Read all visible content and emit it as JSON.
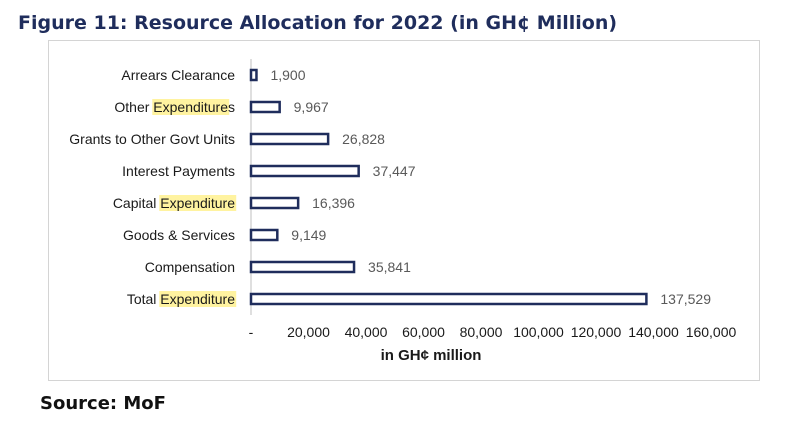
{
  "figure": {
    "title": "Figure 11: Resource Allocation for 2022 (in GH¢ Million)",
    "source": "Source: MoF"
  },
  "chart_data": {
    "type": "bar",
    "orientation": "horizontal",
    "categories": [
      "Arrears Clearance",
      "Other Expenditures",
      "Grants to Other Govt Units",
      "Interest Payments",
      "Capital Expenditure",
      "Goods & Services",
      "Compensation",
      "Total Expenditure"
    ],
    "values": [
      1900,
      9967,
      26828,
      37447,
      16396,
      9149,
      35841,
      137529
    ],
    "value_labels": [
      "1,900",
      "9,967",
      "26,828",
      "37,447",
      "16,396",
      "9,149",
      "35,841",
      "137,529"
    ],
    "xlabel": "in GH¢ million",
    "ylabel": "",
    "xlim": [
      0,
      160000
    ],
    "x_ticks": [
      0,
      20000,
      40000,
      60000,
      80000,
      100000,
      120000,
      140000,
      160000
    ],
    "x_tick_labels": [
      "-",
      "20,000",
      "40,000",
      "60,000",
      "80,000",
      "100,000",
      "120,000",
      "140,000",
      "160,000"
    ],
    "highlight_word": "Expenditure",
    "highlight_color": "#fff3a0",
    "bar_fill": "#ffffff",
    "bar_stroke": "#1f2d5c",
    "grid": false,
    "legend": "none"
  }
}
